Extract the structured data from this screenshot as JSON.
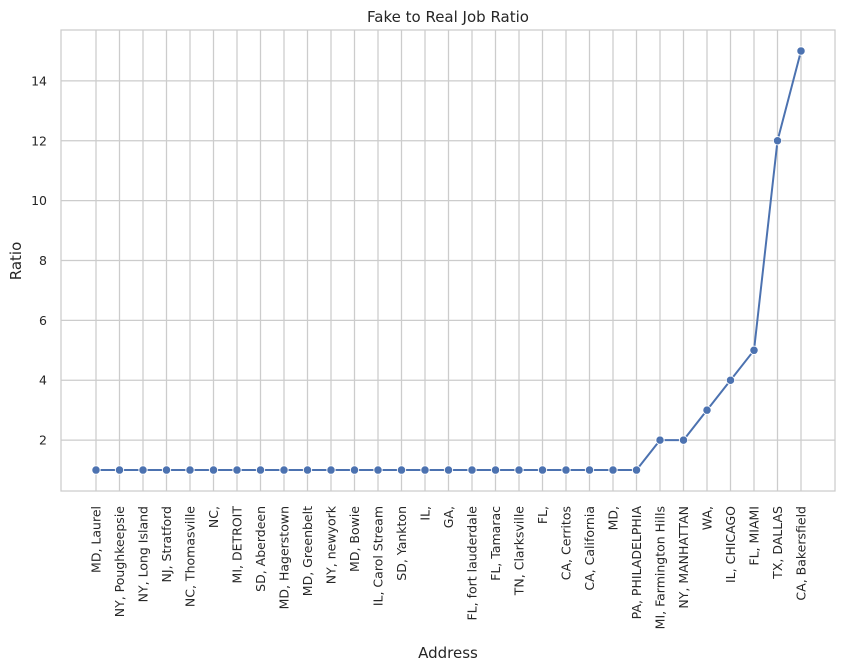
{
  "chart_data": {
    "type": "line",
    "title": "Fake to Real Job Ratio",
    "xlabel": "Address",
    "ylabel": "Ratio",
    "categories": [
      "MD, Laurel",
      "NY, Poughkeepsie",
      "NY, Long Island",
      "NJ, Stratford",
      "NC, Thomasville",
      "NC,",
      "MI, DETROIT",
      "SD, Aberdeen",
      "MD, Hagerstown",
      "MD, Greenbelt",
      "NY, newyork",
      "MD, Bowie",
      "IL, Carol Stream",
      "SD, Yankton",
      "IL,",
      "GA,",
      "FL, fort lauderdale",
      "FL, Tamarac",
      "TN, Clarksville",
      "FL,",
      "CA, Cerritos",
      "CA, California",
      "MD,",
      "PA, PHILADELPHIA",
      "MI, Farmington Hills",
      "NY, MANHATTAN",
      "WA,",
      "IL, CHICAGO",
      "FL, MIAMI",
      "TX, DALLAS",
      "CA, Bakersfield"
    ],
    "values": [
      1,
      1,
      1,
      1,
      1,
      1,
      1,
      1,
      1,
      1,
      1,
      1,
      1,
      1,
      1,
      1,
      1,
      1,
      1,
      1,
      1,
      1,
      1,
      1,
      2,
      2,
      3,
      4,
      5,
      12,
      15
    ],
    "ylim": [
      0.3,
      15.7
    ],
    "yticks": [
      2,
      4,
      6,
      8,
      10,
      12,
      14
    ],
    "grid": true,
    "legend": "none",
    "colors": {
      "line": "#4c72b0",
      "grid": "#cccccc",
      "frame": "#cccccc",
      "text": "#262626"
    }
  }
}
